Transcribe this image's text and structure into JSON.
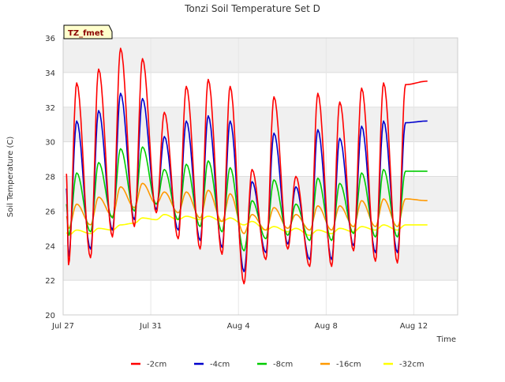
{
  "chart_data": {
    "type": "line",
    "title": "Tonzi Soil Temperature Set D",
    "xlabel": "Time",
    "ylabel": "Soil Temperature (C)",
    "badge": "TZ_fmet",
    "ylim": [
      20,
      36
    ],
    "xlim": [
      0,
      18
    ],
    "x_unit": "days since Jul 27",
    "y_ticks": [
      20,
      22,
      24,
      26,
      28,
      30,
      32,
      34,
      36
    ],
    "x_ticks": [
      {
        "x": 0,
        "label": "Jul 27"
      },
      {
        "x": 4,
        "label": "Jul 31"
      },
      {
        "x": 8,
        "label": "Aug 4"
      },
      {
        "x": 12,
        "label": "Aug 8"
      },
      {
        "x": 16,
        "label": "Aug 12"
      }
    ],
    "grid": true,
    "legend_position": "bottom",
    "series": [
      {
        "name": "-2cm",
        "color": "#ff0000",
        "daily_min": [
          22.9,
          23.3,
          24.5,
          25.1,
          25.9,
          24.4,
          23.8,
          23.5,
          21.8,
          23.2,
          23.8,
          22.8,
          22.8,
          23.7,
          23.1,
          23.0
        ],
        "daily_max": [
          33.4,
          34.2,
          35.4,
          34.8,
          31.7,
          33.2,
          33.6,
          33.2,
          28.4,
          32.6,
          28.0,
          32.8,
          32.3,
          33.1,
          33.4,
          33.3,
          33.5
        ]
      },
      {
        "name": "-4cm",
        "color": "#0000cc",
        "daily_min": [
          23.4,
          23.8,
          24.9,
          25.5,
          26.1,
          24.9,
          24.3,
          23.9,
          22.5,
          23.6,
          24.1,
          23.2,
          23.2,
          24.0,
          23.6,
          23.6
        ],
        "daily_max": [
          31.2,
          31.8,
          32.8,
          32.5,
          30.3,
          31.2,
          31.5,
          31.2,
          27.7,
          30.5,
          27.4,
          30.7,
          30.2,
          30.9,
          31.2,
          31.1,
          31.2
        ]
      },
      {
        "name": "-8cm",
        "color": "#00cc00",
        "daily_min": [
          24.6,
          24.8,
          25.6,
          26.0,
          26.4,
          25.5,
          25.1,
          24.8,
          23.7,
          24.4,
          24.6,
          24.3,
          24.3,
          24.7,
          24.5,
          24.5
        ],
        "daily_max": [
          28.2,
          28.8,
          29.6,
          29.7,
          28.4,
          28.7,
          28.9,
          28.5,
          26.6,
          27.8,
          26.4,
          27.9,
          27.6,
          28.2,
          28.4,
          28.3,
          28.3
        ]
      },
      {
        "name": "-16cm",
        "color": "#ff9900",
        "daily_min": [
          25.0,
          25.2,
          25.7,
          26.2,
          26.4,
          25.9,
          25.6,
          25.4,
          24.7,
          24.9,
          25.0,
          24.9,
          24.9,
          25.1,
          25.1,
          25.1
        ],
        "daily_max": [
          26.4,
          26.8,
          27.4,
          27.6,
          27.1,
          27.1,
          27.2,
          27.0,
          25.8,
          26.2,
          25.8,
          26.3,
          26.3,
          26.6,
          26.7,
          26.7,
          26.6
        ]
      },
      {
        "name": "-32cm",
        "color": "#ffff00",
        "daily_min": [
          24.6,
          24.7,
          24.9,
          25.3,
          25.5,
          25.5,
          25.5,
          25.4,
          25.2,
          24.9,
          24.8,
          24.6,
          24.7,
          24.8,
          24.9,
          24.9
        ],
        "daily_max": [
          24.9,
          25.0,
          25.2,
          25.6,
          25.8,
          25.7,
          25.7,
          25.6,
          25.4,
          25.1,
          25.0,
          24.9,
          25.0,
          25.1,
          25.2,
          25.2,
          25.2
        ]
      }
    ]
  }
}
